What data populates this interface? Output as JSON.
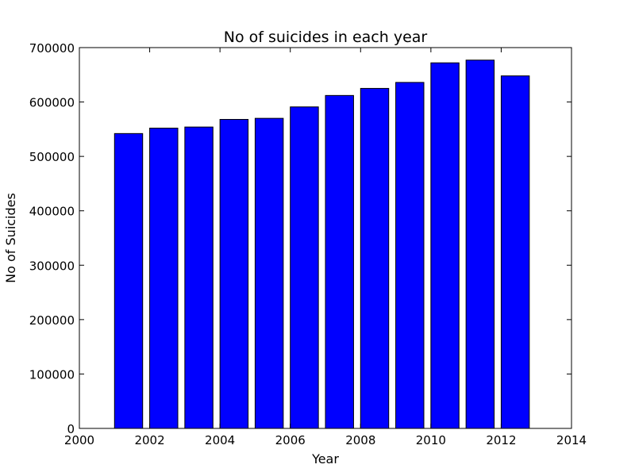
{
  "chart_data": {
    "type": "bar",
    "title": "No of suicides in each year",
    "xlabel": "Year",
    "ylabel": "No of Suicides",
    "xlim": [
      2000,
      2014
    ],
    "ylim": [
      0,
      700000
    ],
    "x_ticks": [
      2000,
      2002,
      2004,
      2006,
      2008,
      2010,
      2012,
      2014
    ],
    "y_ticks": [
      0,
      100000,
      200000,
      300000,
      400000,
      500000,
      600000,
      700000
    ],
    "grid": false,
    "bar_color": "#0000ff",
    "edge_color": "#000000",
    "bar_width": 0.8,
    "categories": [
      2001,
      2002,
      2003,
      2004,
      2005,
      2006,
      2007,
      2008,
      2009,
      2010,
      2011,
      2012
    ],
    "values": [
      542000,
      552000,
      554000,
      568000,
      570000,
      591000,
      612000,
      625000,
      636000,
      672000,
      677000,
      648000
    ]
  }
}
